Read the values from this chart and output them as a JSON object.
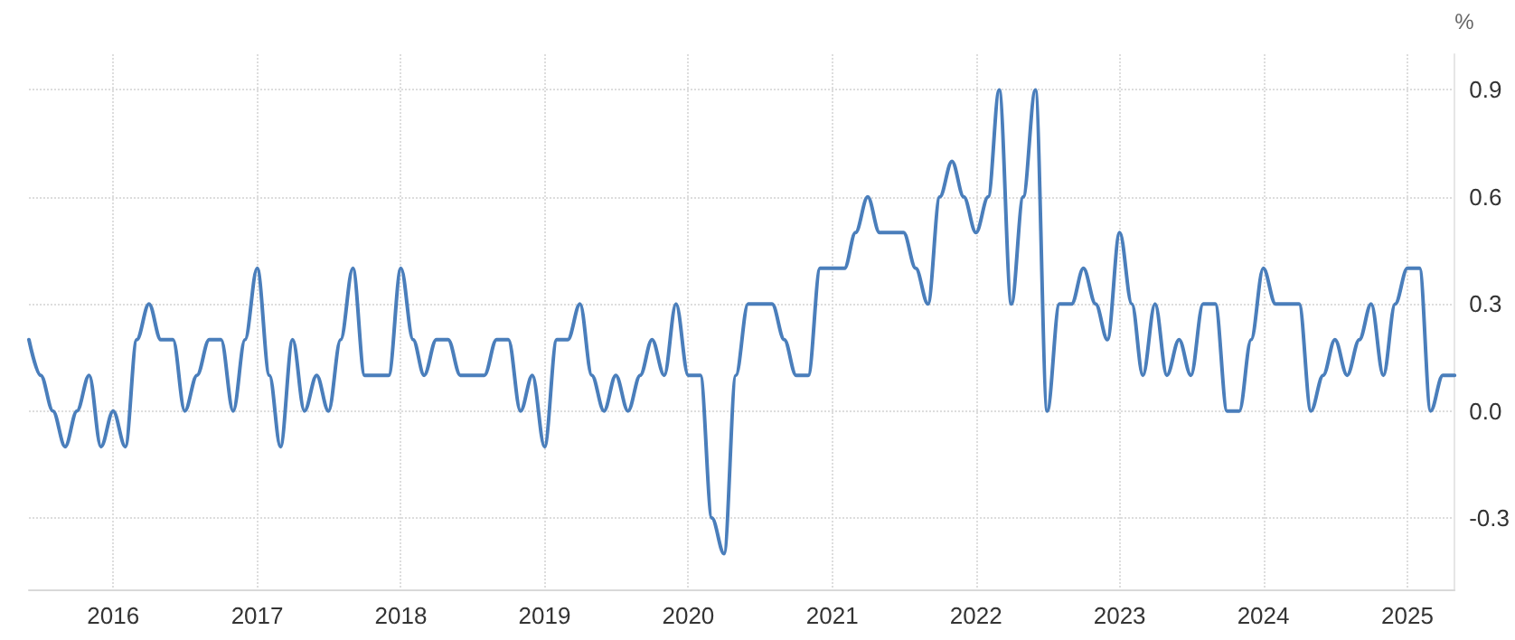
{
  "chart_data": {
    "type": "line",
    "ylabel": "%",
    "x": [
      "2015-06",
      "2015-07",
      "2015-08",
      "2015-09",
      "2015-10",
      "2015-11",
      "2015-12",
      "2016-01",
      "2016-02",
      "2016-03",
      "2016-04",
      "2016-05",
      "2016-06",
      "2016-07",
      "2016-08",
      "2016-09",
      "2016-10",
      "2016-11",
      "2016-12",
      "2017-01",
      "2017-02",
      "2017-03",
      "2017-04",
      "2017-05",
      "2017-06",
      "2017-07",
      "2017-08",
      "2017-09",
      "2017-10",
      "2017-11",
      "2017-12",
      "2018-01",
      "2018-02",
      "2018-03",
      "2018-04",
      "2018-05",
      "2018-06",
      "2018-07",
      "2018-08",
      "2018-09",
      "2018-10",
      "2018-11",
      "2018-12",
      "2019-01",
      "2019-02",
      "2019-03",
      "2019-04",
      "2019-05",
      "2019-06",
      "2019-07",
      "2019-08",
      "2019-09",
      "2019-10",
      "2019-11",
      "2019-12",
      "2020-01",
      "2020-02",
      "2020-03",
      "2020-04",
      "2020-05",
      "2020-06",
      "2020-07",
      "2020-08",
      "2020-09",
      "2020-10",
      "2020-11",
      "2020-12",
      "2021-01",
      "2021-02",
      "2021-03",
      "2021-04",
      "2021-05",
      "2021-06",
      "2021-07",
      "2021-08",
      "2021-09",
      "2021-10",
      "2021-11",
      "2021-12",
      "2022-01",
      "2022-02",
      "2022-03",
      "2022-04",
      "2022-05",
      "2022-06",
      "2022-07",
      "2022-08",
      "2022-09",
      "2022-10",
      "2022-11",
      "2022-12",
      "2023-01",
      "2023-02",
      "2023-03",
      "2023-04",
      "2023-05",
      "2023-06",
      "2023-07",
      "2023-08",
      "2023-09",
      "2023-10",
      "2023-11",
      "2023-12",
      "2024-01",
      "2024-02",
      "2024-03",
      "2024-04",
      "2024-05",
      "2024-06",
      "2024-07",
      "2024-08",
      "2024-09",
      "2024-10",
      "2024-11",
      "2024-12",
      "2025-01",
      "2025-02",
      "2025-03",
      "2025-04",
      "2025-05"
    ],
    "series": [
      {
        "color": "#4a7ebb",
        "values": [
          0.2,
          0.1,
          0.0,
          -0.1,
          0.0,
          0.1,
          -0.1,
          0.0,
          -0.1,
          0.2,
          0.3,
          0.2,
          0.2,
          0.0,
          0.1,
          0.2,
          0.2,
          0.0,
          0.2,
          0.4,
          0.1,
          -0.1,
          0.2,
          0.0,
          0.1,
          0.0,
          0.2,
          0.4,
          0.1,
          0.1,
          0.1,
          0.4,
          0.2,
          0.1,
          0.2,
          0.2,
          0.1,
          0.1,
          0.1,
          0.2,
          0.2,
          0.0,
          0.1,
          -0.1,
          0.2,
          0.2,
          0.3,
          0.1,
          0.0,
          0.1,
          0.0,
          0.1,
          0.2,
          0.1,
          0.3,
          0.1,
          0.1,
          -0.3,
          -0.4,
          0.1,
          0.3,
          0.3,
          0.3,
          0.2,
          0.1,
          0.1,
          0.4,
          0.4,
          0.4,
          0.5,
          0.6,
          0.5,
          0.5,
          0.5,
          0.4,
          0.3,
          0.6,
          0.7,
          0.6,
          0.5,
          0.6,
          0.9,
          0.3,
          0.6,
          0.9,
          0.0,
          0.3,
          0.3,
          0.4,
          0.3,
          0.2,
          0.5,
          0.3,
          0.1,
          0.3,
          0.1,
          0.2,
          0.1,
          0.3,
          0.3,
          0.0,
          0.0,
          0.2,
          0.4,
          0.3,
          0.3,
          0.3,
          0.0,
          0.1,
          0.2,
          0.1,
          0.2,
          0.3,
          0.1,
          0.3,
          0.4,
          0.4,
          0.0,
          0.1,
          0.1
        ]
      }
    ],
    "xlim": [
      "2015-06",
      "2025-05"
    ],
    "xticks": [
      "2016",
      "2017",
      "2018",
      "2019",
      "2020",
      "2021",
      "2022",
      "2023",
      "2024",
      "2025"
    ],
    "ylim": [
      -0.5,
      1.0
    ],
    "yticks": [
      -0.3,
      {
        "value": 0,
        "label": "0.0"
      },
      0.3,
      0.6,
      0.9
    ],
    "grid": true,
    "line_style": "solid",
    "marker": "none"
  }
}
